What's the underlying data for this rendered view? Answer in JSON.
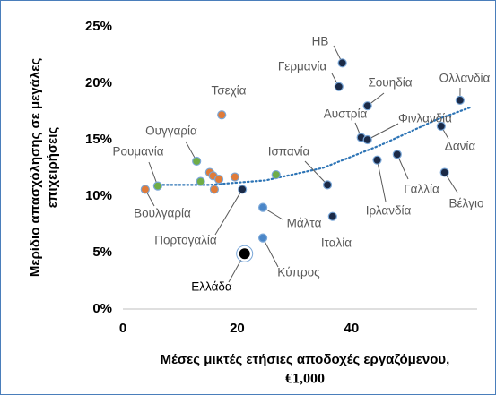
{
  "chart_data": {
    "type": "scatter",
    "y_label": [
      "Μερίδιο απασχόλησης σε μεγάλες",
      "επιχειρήσεις"
    ],
    "x_label": [
      "Μέσες μικτές ετήσιες αποδοχές εργαζόμενου,",
      "€1,000"
    ],
    "xlim": [
      0,
      62
    ],
    "xticks": [
      0,
      20,
      40
    ],
    "ylim": [
      0,
      25
    ],
    "yticks": [
      {
        "value": 0,
        "label": "0%"
      },
      {
        "value": 5,
        "label": "5%"
      },
      {
        "value": 10,
        "label": "10%"
      },
      {
        "value": 15,
        "label": "15%"
      },
      {
        "value": 20,
        "label": "20%"
      },
      {
        "value": 25,
        "label": "25%"
      }
    ],
    "points": {
      "labels": [
        "ΗΒ",
        "Γερμανία",
        "Σουηδία",
        "Ολλανδία",
        "Αυστρία",
        "Φινλανδία",
        "Δανία",
        "Ιρλανδία",
        "Γαλλία",
        "Βέλγιο",
        "Ιταλία",
        "Ισπανία",
        "Τσεχία",
        "Ουγγαρία",
        "Ρουμανία",
        "Βουλγαρία",
        "Πορτογαλία",
        "Μάλτα",
        "Κύπρος",
        "Ελλάδα",
        null,
        null,
        null,
        null,
        null,
        null,
        null
      ],
      "x": [
        38.4,
        37.8,
        42.8,
        59,
        41.7,
        42.8,
        55.7,
        44.5,
        48,
        56.3,
        36.7,
        35.8,
        17.3,
        12.9,
        6.1,
        3.9,
        20.9,
        24.5,
        24.5,
        21.3,
        13.6,
        15.2,
        15.8,
        16.8,
        16,
        19.6,
        26.8
      ],
      "y": [
        21.8,
        19.7,
        18.0,
        18.5,
        15.2,
        15.0,
        16.2,
        13.2,
        13.7,
        12.1,
        8.2,
        11.0,
        17.2,
        13.1,
        10.9,
        10.6,
        10.6,
        9.0,
        6.3,
        4.9,
        11.3,
        12.1,
        11.8,
        11.5,
        10.6,
        11.7,
        11.9
      ],
      "colors": [
        "#1b2a47",
        "#1b2a47",
        "#1b2a47",
        "#1b2a47",
        "#1b2a47",
        "#1b2a47",
        "#1b2a47",
        "#1b2a47",
        "#1b2a47",
        "#1b2a47",
        "#1b2a47",
        "#1b2a47",
        "#e07b39",
        "#70ad47",
        "#70ad47",
        "#e07b39",
        "#1b2a47",
        "#4a86c8",
        "#4a86c8",
        "#000000",
        "#70ad47",
        "#e07b39",
        "#e07b39",
        "#e07b39",
        "#e07b39",
        "#e07b39",
        "#70ad47"
      ]
    },
    "trendline": {
      "color": "#2e75b6",
      "x": [
        7,
        15,
        25,
        35,
        45,
        55,
        61
      ],
      "y": [
        11.0,
        11.0,
        11.4,
        12.5,
        14.5,
        16.8,
        17.9
      ]
    }
  }
}
